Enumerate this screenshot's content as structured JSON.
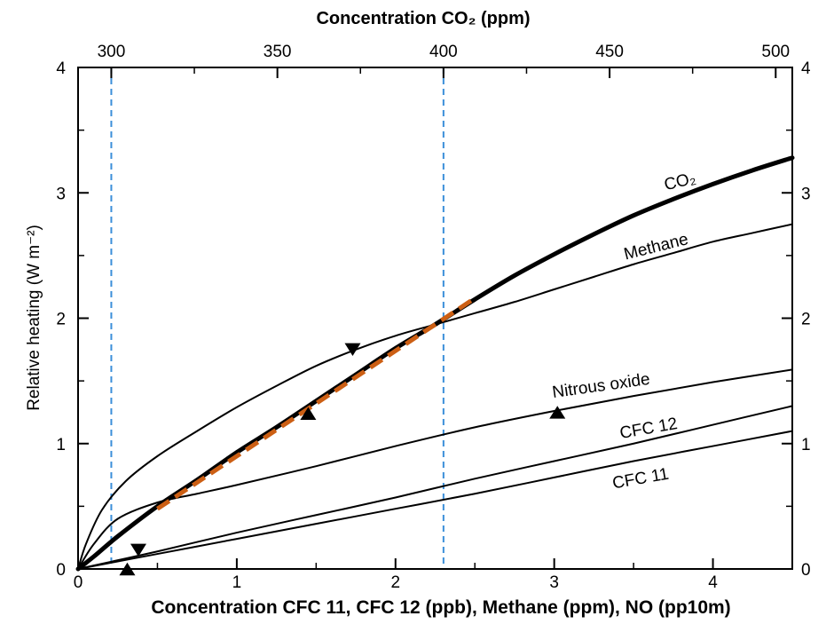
{
  "chart_data": {
    "type": "line",
    "title": "",
    "xlabel": "Concentration CFC 11, CFC 12 (ppb), Methane (ppm), NO (pp10m)",
    "x2label": "Concentration CO₂ (ppm)",
    "ylabel": "Relative heating (W m⁻²)",
    "xlim": [
      0,
      4.5
    ],
    "ylim": [
      0,
      4
    ],
    "x2lim": [
      290,
      505
    ],
    "x_ticks": [
      0,
      1,
      2,
      3,
      4
    ],
    "x_tick_labels": [
      "0",
      "1",
      "2",
      "3",
      "4"
    ],
    "x2_ticks": [
      300,
      350,
      400,
      450,
      500
    ],
    "x2_tick_labels": [
      "300",
      "350",
      "400",
      "450",
      "500"
    ],
    "y_ticks": [
      0,
      1,
      2,
      3,
      4
    ],
    "y_tick_labels": [
      "0",
      "1",
      "2",
      "3",
      "4"
    ],
    "grid": false,
    "series": [
      {
        "name": "CO₂",
        "color": "#000000",
        "x": [
          0,
          0.1,
          0.25,
          0.5,
          0.75,
          1.0,
          1.25,
          1.5,
          1.75,
          2.0,
          2.25,
          2.5,
          2.75,
          3.0,
          3.25,
          3.5,
          3.75,
          4.0,
          4.25,
          4.5
        ],
        "y": [
          0,
          0.1,
          0.26,
          0.5,
          0.71,
          0.93,
          1.13,
          1.34,
          1.55,
          1.76,
          1.95,
          2.15,
          2.34,
          2.51,
          2.67,
          2.82,
          2.95,
          3.07,
          3.18,
          3.28
        ]
      },
      {
        "name": "Methane",
        "color": "#000000",
        "x": [
          0,
          0.05,
          0.15,
          0.3,
          0.5,
          0.75,
          1.0,
          1.25,
          1.5,
          1.75,
          2.0,
          2.25,
          2.5,
          2.75,
          3.0,
          3.25,
          3.5,
          3.75,
          4.0,
          4.25,
          4.5
        ],
        "y": [
          0,
          0.2,
          0.47,
          0.7,
          0.9,
          1.1,
          1.29,
          1.46,
          1.62,
          1.75,
          1.86,
          1.95,
          2.04,
          2.13,
          2.23,
          2.33,
          2.43,
          2.52,
          2.61,
          2.68,
          2.75
        ]
      },
      {
        "name": "Nitrous oxide",
        "color": "#000000",
        "x": [
          0,
          0.1,
          0.25,
          0.5,
          0.75,
          1.0,
          1.5,
          2.0,
          2.5,
          3.0,
          3.5,
          4.0,
          4.5
        ],
        "y": [
          0,
          0.2,
          0.4,
          0.53,
          0.6,
          0.67,
          0.82,
          0.98,
          1.13,
          1.26,
          1.38,
          1.49,
          1.59
        ]
      },
      {
        "name": "CFC 12",
        "color": "#000000",
        "x": [
          0,
          0.5,
          1.0,
          1.5,
          2.0,
          2.5,
          3.0,
          3.5,
          4.0,
          4.5
        ],
        "y": [
          0,
          0.14,
          0.29,
          0.43,
          0.57,
          0.72,
          0.86,
          1.0,
          1.15,
          1.3
        ]
      },
      {
        "name": "CFC 11",
        "color": "#000000",
        "x": [
          0,
          0.5,
          1.0,
          1.5,
          2.0,
          2.5,
          3.0,
          3.5,
          4.0,
          4.5
        ],
        "y": [
          0,
          0.12,
          0.24,
          0.36,
          0.48,
          0.6,
          0.73,
          0.86,
          0.98,
          1.1
        ]
      }
    ],
    "fit_line": {
      "color": "#cc5f14",
      "x": [
        0.5,
        2.5
      ],
      "y": [
        0.48,
        2.16
      ]
    },
    "reference_lines_co2_ppm": [
      300,
      400
    ],
    "reference_line_color": "#3b8fd9",
    "markers": [
      {
        "shape": "triangle-down",
        "x": 1.73,
        "y": 1.75
      },
      {
        "shape": "triangle-down",
        "x": 0.38,
        "y": 0.15
      },
      {
        "shape": "triangle-up",
        "x": 1.45,
        "y": 1.24
      },
      {
        "shape": "triangle-up",
        "x": 3.02,
        "y": 1.25
      },
      {
        "shape": "triangle-up",
        "x": 0.31,
        "y": 0.0
      }
    ],
    "curve_labels": [
      {
        "text": "CO₂",
        "x": 3.8,
        "y": 3.05,
        "rotate": -14
      },
      {
        "text": "Methane",
        "x": 3.65,
        "y": 2.53,
        "rotate": -14
      },
      {
        "text": "Nitrous oxide",
        "x": 3.3,
        "y": 1.42,
        "rotate": -8
      },
      {
        "text": "CFC 12",
        "x": 3.6,
        "y": 1.08,
        "rotate": -10
      },
      {
        "text": "CFC 11",
        "x": 3.55,
        "y": 0.68,
        "rotate": -10
      }
    ]
  }
}
